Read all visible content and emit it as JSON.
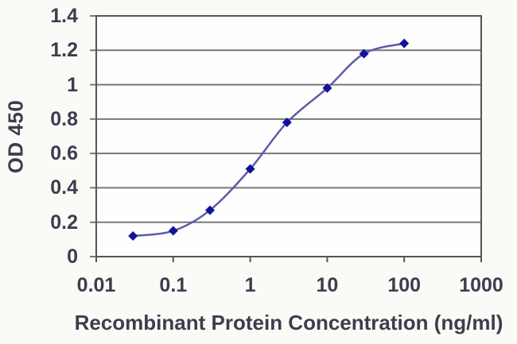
{
  "chart_data": {
    "type": "line",
    "title": "",
    "xlabel": "Recombinant Protein Concentration (ng/ml)",
    "ylabel": "OD 450",
    "x_scale": "log",
    "xlim": [
      0.01,
      1000
    ],
    "ylim": [
      0,
      1.4
    ],
    "x_tick_labels": [
      "0.01",
      "0.1",
      "1",
      "10",
      "100",
      "1000"
    ],
    "y_tick_labels": [
      "0",
      "0.2",
      "0.4",
      "0.6",
      "0.8",
      "1",
      "1.2",
      "1.4"
    ],
    "grid": "horizontal",
    "legend": "none",
    "marker": "diamond",
    "series": [
      {
        "x": [
          0.03,
          0.1,
          0.3,
          1,
          3,
          10,
          30,
          100
        ],
        "y": [
          0.12,
          0.15,
          0.27,
          0.51,
          0.78,
          0.98,
          1.18,
          1.24
        ]
      }
    ],
    "colors": {
      "line": "#5c5cab",
      "marker": "#12129a",
      "gridline": "#777777",
      "border": "#555555",
      "text": "#3d3d4d",
      "background": "#fafaf7",
      "plot_background": "#fefefe"
    }
  }
}
